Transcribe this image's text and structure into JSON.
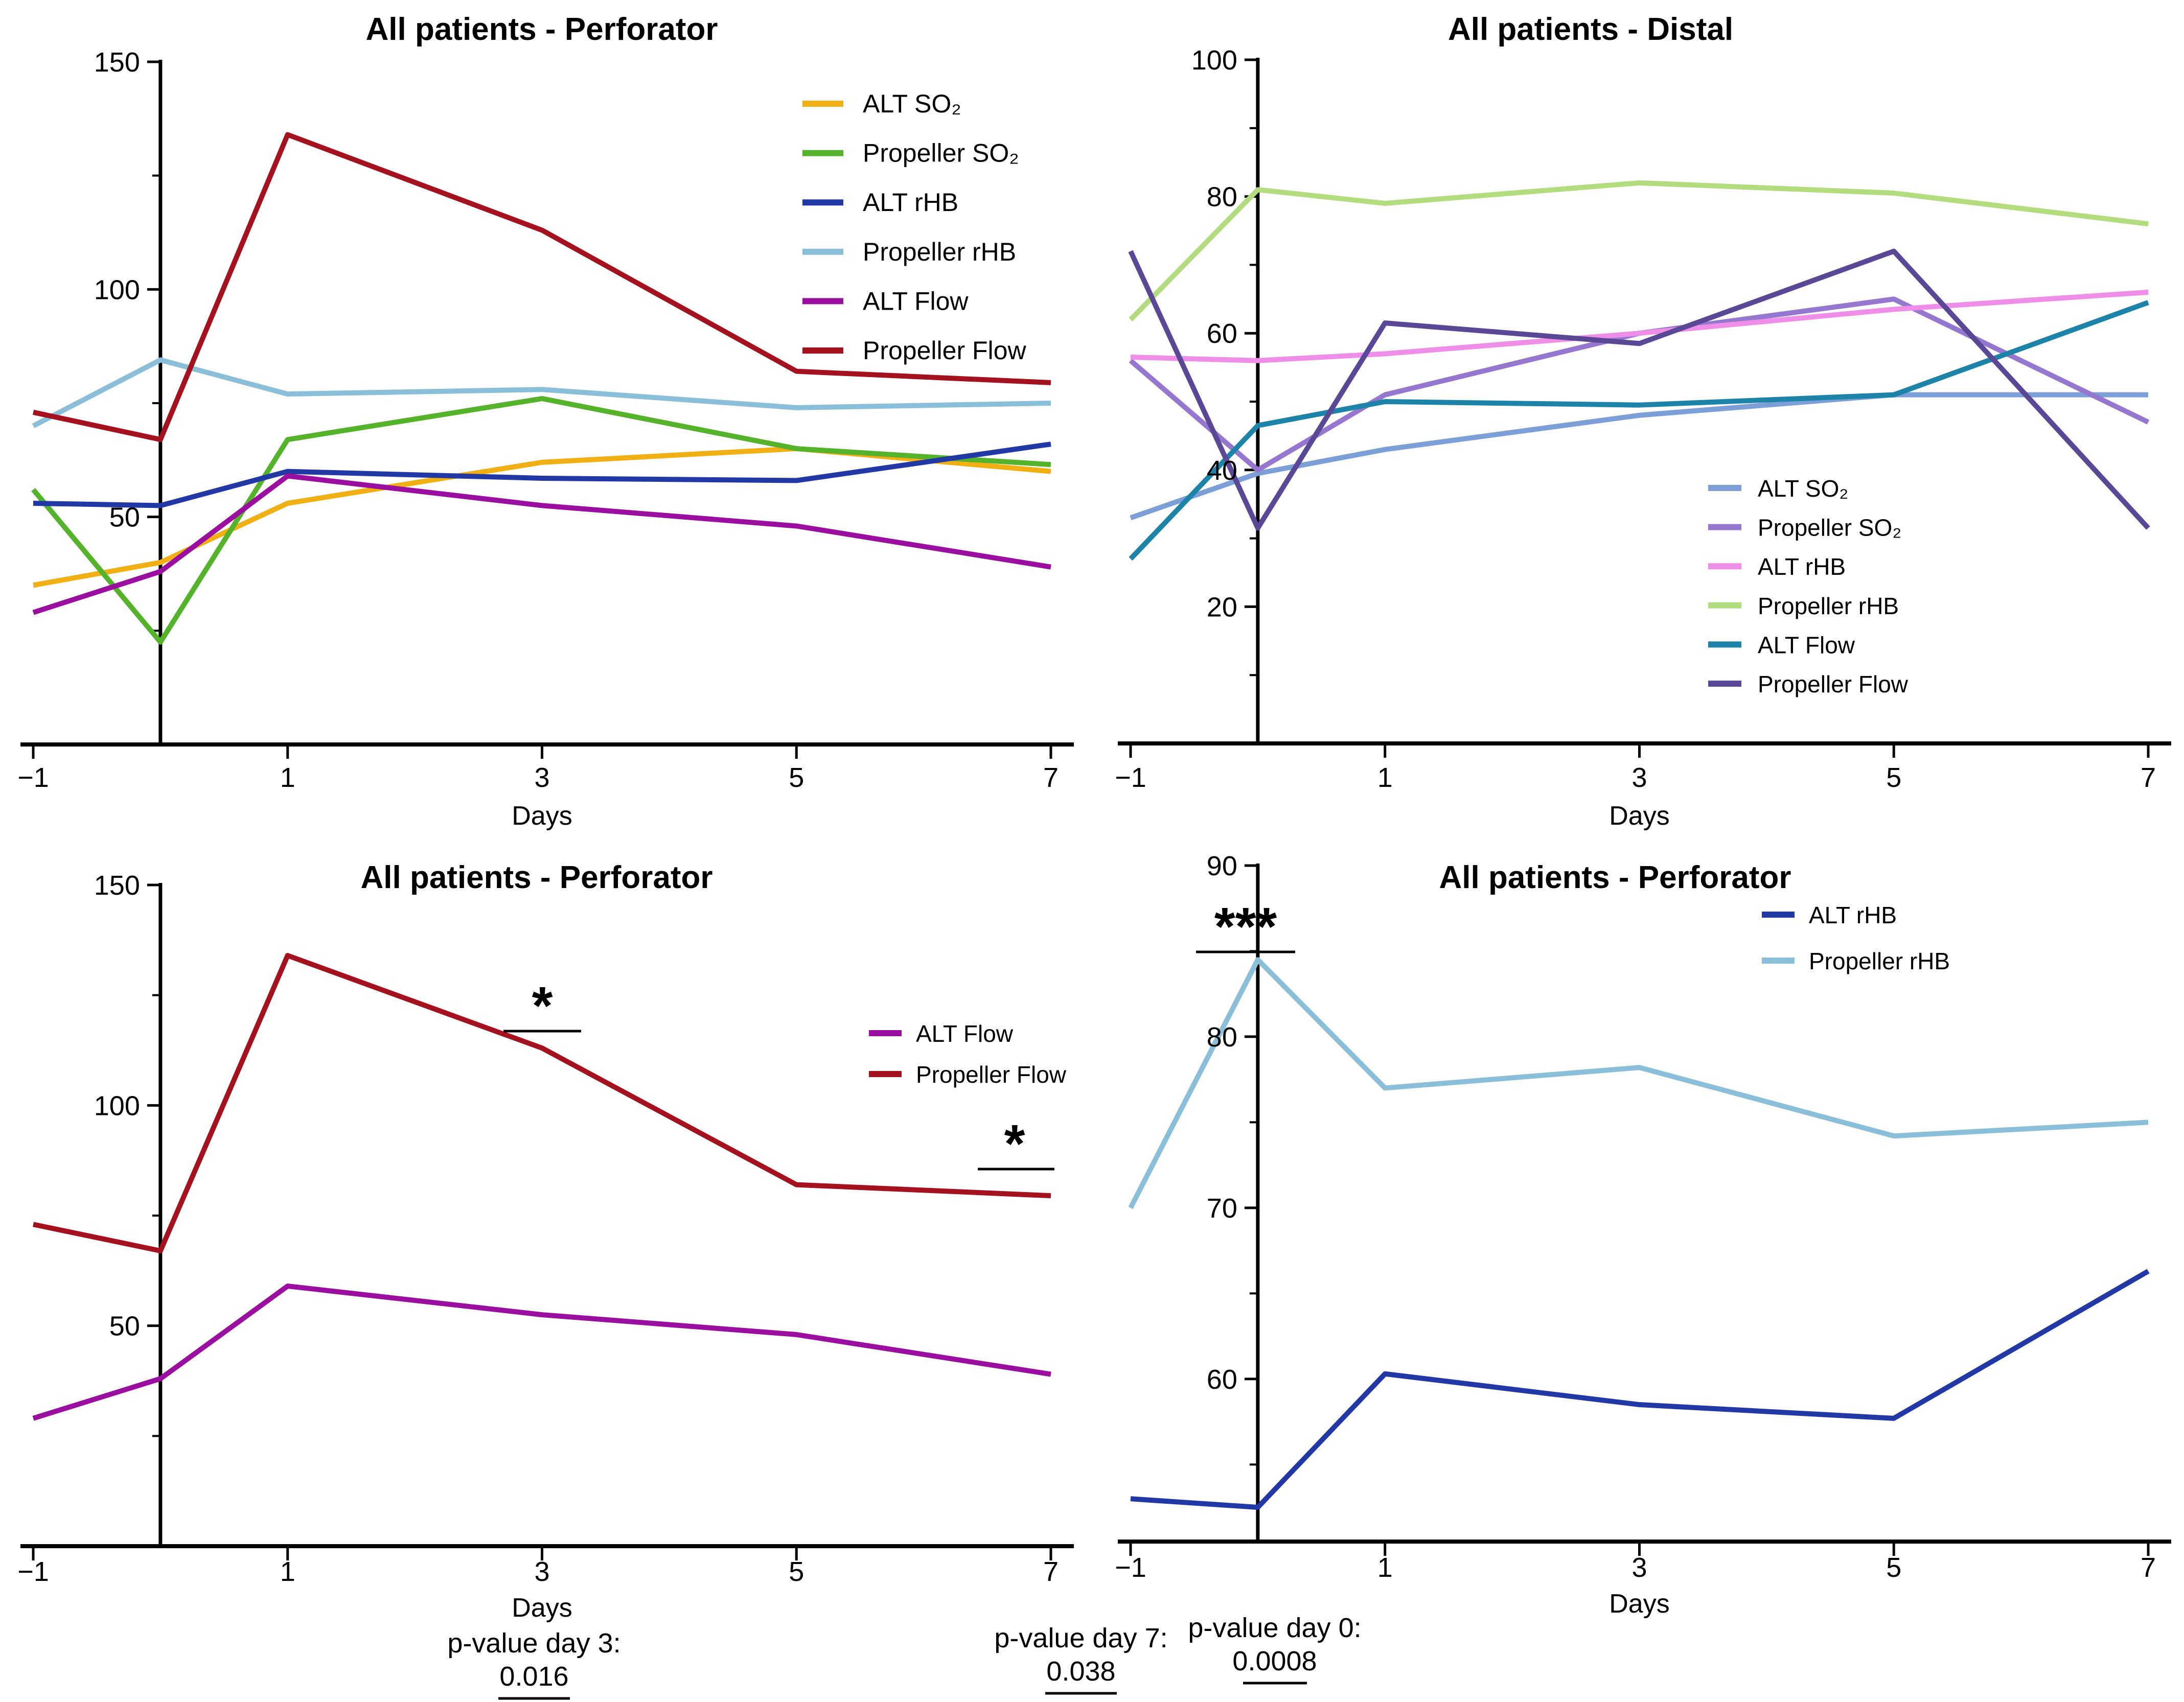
{
  "figure": {
    "background": "#ffffff",
    "description_days_axis_label": "Days"
  },
  "chart_data": [
    {
      "id": "top-left",
      "type": "line",
      "title": "All patients - Perforator",
      "xlabel": "Days",
      "x": [
        -1,
        0,
        1,
        3,
        5,
        7
      ],
      "xticks": [
        -1,
        1,
        3,
        5,
        7
      ],
      "xtick_labels": [
        "−1",
        "1",
        "3",
        "5",
        "7"
      ],
      "ylim": [
        0,
        150
      ],
      "yticks": [
        50,
        100,
        150
      ],
      "yticks_minor": [
        25,
        75,
        125
      ],
      "y_axis_at_day": 0,
      "grid": false,
      "legend_position": "upper-right-inside",
      "series": [
        {
          "name": "ALT SO₂",
          "color": "#F0AF12",
          "values": [
            35,
            40,
            53,
            62,
            65,
            60
          ]
        },
        {
          "name": "Propeller SO₂",
          "color": "#55B22B",
          "values": [
            56,
            22.5,
            67,
            76,
            65,
            61.5
          ]
        },
        {
          "name": "ALT rHB",
          "color": "#2238A5",
          "values": [
            53,
            52.5,
            60,
            58.5,
            58,
            66
          ]
        },
        {
          "name": "Propeller rHB",
          "color": "#8BBFD9",
          "values": [
            70,
            84.5,
            77,
            78,
            74,
            75
          ]
        },
        {
          "name": "ALT Flow",
          "color": "#9A0FA0",
          "values": [
            29,
            38,
            59,
            52.5,
            48,
            39
          ]
        },
        {
          "name": "Propeller Flow",
          "color": "#A5121F",
          "values": [
            73,
            67,
            134,
            113,
            82,
            79.5
          ]
        }
      ]
    },
    {
      "id": "top-right",
      "type": "line",
      "title": "All patients - Distal",
      "xlabel": "Days",
      "x": [
        -1,
        0,
        1,
        3,
        5,
        7
      ],
      "xticks": [
        -1,
        1,
        3,
        5,
        7
      ],
      "xtick_labels": [
        "−1",
        "1",
        "3",
        "5",
        "7"
      ],
      "ylim": [
        0,
        100
      ],
      "yticks": [
        20,
        40,
        60,
        80,
        100
      ],
      "yticks_minor": [
        10,
        30,
        50,
        70,
        90
      ],
      "y_axis_at_day": 0,
      "grid": false,
      "legend_position": "lower-right-inside",
      "series": [
        {
          "name": "ALT SO₂",
          "color": "#7C9FD8",
          "values": [
            33,
            39.5,
            43,
            48,
            51,
            51
          ]
        },
        {
          "name": "Propeller SO₂",
          "color": "#9577D0",
          "values": [
            56,
            40,
            51,
            60,
            65,
            47
          ]
        },
        {
          "name": "ALT rHB",
          "color": "#EE8EE8",
          "values": [
            56.5,
            56,
            57,
            60,
            63.5,
            66
          ]
        },
        {
          "name": "Propeller rHB",
          "color": "#B2DC7D",
          "values": [
            62,
            81,
            79,
            82,
            80.5,
            76
          ]
        },
        {
          "name": "ALT Flow",
          "color": "#1E83A8",
          "values": [
            27,
            46.5,
            50,
            49.5,
            51,
            64.5
          ]
        },
        {
          "name": "Propeller Flow",
          "color": "#5A4795",
          "values": [
            72,
            31.5,
            61.5,
            58.5,
            72,
            31.5
          ]
        }
      ]
    },
    {
      "id": "bottom-left",
      "type": "line",
      "title": "All patients - Perforator",
      "xlabel": "Days",
      "x": [
        -1,
        0,
        1,
        3,
        5,
        7
      ],
      "xticks": [
        -1,
        1,
        3,
        5,
        7
      ],
      "xtick_labels": [
        "−1",
        "1",
        "3",
        "5",
        "7"
      ],
      "ylim": [
        0,
        150
      ],
      "yticks": [
        50,
        100,
        150
      ],
      "yticks_minor": [
        25,
        75,
        125
      ],
      "y_axis_at_day": 0,
      "grid": false,
      "legend_position": "middle-right-inside",
      "series": [
        {
          "name": "ALT Flow",
          "color": "#9A0FA0",
          "values": [
            29,
            38,
            59,
            52.5,
            48,
            39
          ]
        },
        {
          "name": "Propeller Flow",
          "color": "#A5121F",
          "values": [
            73,
            67,
            134,
            113,
            82,
            79.5
          ]
        }
      ],
      "annotations": [
        {
          "text": "*",
          "at_day": 3
        },
        {
          "text": "*",
          "at_day": 7
        }
      ],
      "p_values": [
        {
          "label": "p-value day 3:",
          "value": "0.016"
        },
        {
          "label": "p-value day 7:",
          "value": "0.038"
        }
      ]
    },
    {
      "id": "bottom-right",
      "type": "line",
      "title": "All patients - Perforator",
      "xlabel": "Days",
      "x": [
        -1,
        0,
        1,
        3,
        5,
        7
      ],
      "xticks": [
        -1,
        1,
        3,
        5,
        7
      ],
      "xtick_labels": [
        "−1",
        "1",
        "3",
        "5",
        "7"
      ],
      "ylim": [
        50.5,
        90
      ],
      "yticks": [
        60,
        70,
        80,
        90
      ],
      "yticks_minor": [
        55,
        65,
        75,
        85
      ],
      "y_axis_at_day": 0,
      "grid": false,
      "legend_position": "upper-right-inside",
      "series": [
        {
          "name": "ALT rHB",
          "color": "#2238A5",
          "values": [
            53,
            52.5,
            60.3,
            58.5,
            57.7,
            66.3
          ]
        },
        {
          "name": "Propeller rHB",
          "color": "#8BBFD9",
          "values": [
            70,
            84.5,
            77,
            78.2,
            74.2,
            75
          ]
        }
      ],
      "annotations": [
        {
          "text": "***",
          "at_day": 0
        }
      ],
      "p_values": [
        {
          "label": "p-value day 0:",
          "value": "0.0008"
        }
      ]
    }
  ]
}
